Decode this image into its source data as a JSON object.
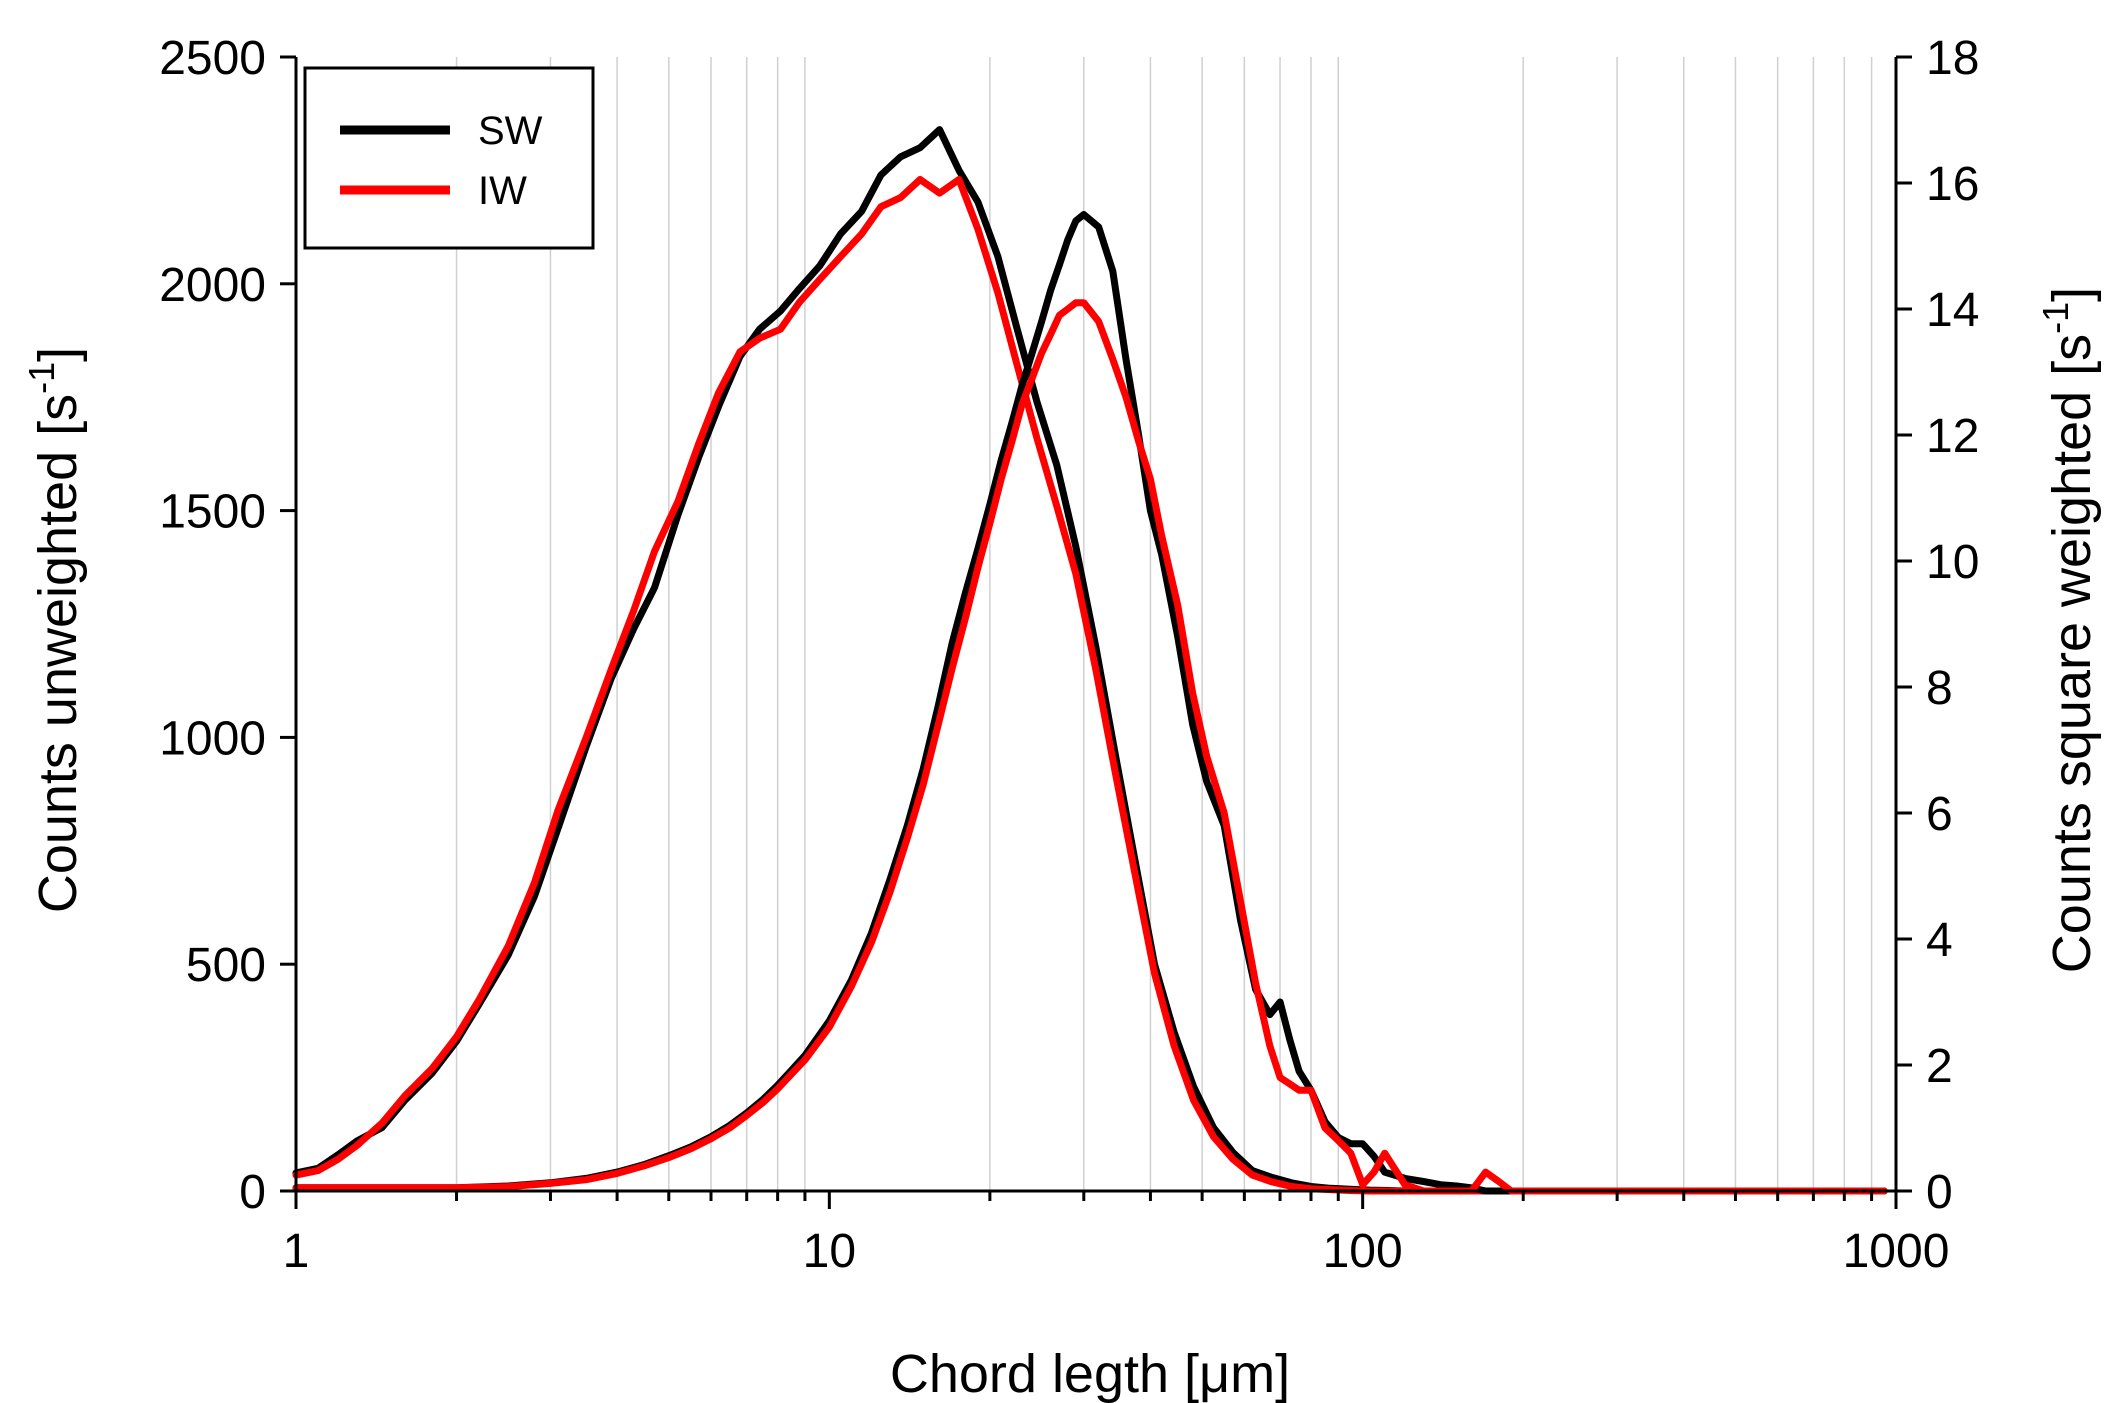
{
  "chart_data": {
    "type": "line",
    "xlabel": "Chord legth [μm]",
    "ylabel_left": "Counts unweighted [s",
    "ylabel_left_sup": "-1",
    "ylabel_left_tail": "]",
    "ylabel_right": "Counts square weighted [s",
    "ylabel_right_sup": "-1",
    "ylabel_right_tail": "]",
    "x_scale": "log",
    "xlim": [
      1,
      1000
    ],
    "x_ticks": [
      "1",
      "10",
      "100",
      "1000"
    ],
    "y_left_lim": [
      0,
      2500
    ],
    "y_left_ticks": [
      "0",
      "500",
      "1000",
      "1500",
      "2000",
      "2500"
    ],
    "y_right_lim": [
      0,
      18
    ],
    "y_right_ticks": [
      "0",
      "2",
      "4",
      "6",
      "8",
      "10",
      "12",
      "14",
      "16",
      "18"
    ],
    "grid": "vertical minor lines",
    "legend_position": "top-left",
    "legend": [
      {
        "name": "SW",
        "color": "#000000"
      },
      {
        "name": "IW",
        "color": "#ff0000"
      }
    ],
    "series": [
      {
        "name": "SW",
        "axis": "left",
        "color": "#000000",
        "x": [
          1,
          1.1,
          1.2,
          1.3,
          1.45,
          1.6,
          1.8,
          2,
          2.2,
          2.5,
          2.8,
          3.1,
          3.5,
          3.9,
          4.3,
          4.7,
          5.2,
          5.7,
          6.2,
          6.8,
          7.4,
          8.1,
          8.8,
          9.6,
          10.5,
          11.5,
          12.5,
          13.6,
          14.8,
          16.1,
          17.5,
          19,
          20.7,
          22.5,
          24.5,
          26.7,
          29,
          31.6,
          34.4,
          37.4,
          40.7,
          44.3,
          48.2,
          52.5,
          57.1,
          62.1,
          67.6,
          73.5,
          80,
          87,
          94.7,
          103,
          112,
          122,
          133,
          145,
          158,
          172,
          187,
          300,
          500,
          700,
          950
        ],
        "y": [
          40,
          50,
          80,
          110,
          140,
          200,
          260,
          330,
          410,
          520,
          650,
          800,
          980,
          1130,
          1240,
          1330,
          1490,
          1620,
          1730,
          1840,
          1900,
          1940,
          1990,
          2040,
          2110,
          2160,
          2240,
          2280,
          2300,
          2340,
          2250,
          2180,
          2060,
          1900,
          1740,
          1600,
          1420,
          1200,
          960,
          730,
          500,
          350,
          230,
          140,
          85,
          45,
          30,
          18,
          10,
          6,
          4,
          2,
          1,
          0,
          0,
          0,
          0,
          0,
          0,
          0,
          0,
          0,
          0
        ]
      },
      {
        "name": "IW",
        "axis": "left",
        "color": "#ff0000",
        "x": [
          1,
          1.1,
          1.2,
          1.3,
          1.45,
          1.6,
          1.8,
          2,
          2.2,
          2.5,
          2.8,
          3.1,
          3.5,
          3.9,
          4.3,
          4.7,
          5.2,
          5.7,
          6.2,
          6.8,
          7.4,
          8.1,
          8.8,
          9.6,
          10.5,
          11.5,
          12.5,
          13.6,
          14.8,
          16.1,
          17.5,
          19,
          20.7,
          22.5,
          24.5,
          26.7,
          29,
          31.6,
          34.4,
          37.4,
          40.7,
          44.3,
          48.2,
          52.5,
          57.1,
          62.1,
          67.6,
          73.5,
          80,
          87,
          94.7,
          103,
          112,
          122,
          133,
          145,
          158,
          172,
          187,
          300,
          500,
          700,
          950
        ],
        "y": [
          35,
          45,
          70,
          100,
          150,
          210,
          270,
          340,
          420,
          540,
          680,
          840,
          1000,
          1150,
          1280,
          1410,
          1520,
          1650,
          1760,
          1850,
          1880,
          1900,
          1960,
          2010,
          2060,
          2110,
          2170,
          2190,
          2230,
          2200,
          2230,
          2120,
          1980,
          1820,
          1660,
          1510,
          1360,
          1150,
          920,
          700,
          480,
          320,
          200,
          120,
          70,
          35,
          20,
          10,
          5,
          3,
          1,
          0,
          0,
          0,
          0,
          0,
          0,
          0,
          0,
          0,
          0,
          0,
          0
        ]
      },
      {
        "name": "SW",
        "axis": "right",
        "color": "#000000",
        "x": [
          1,
          1.5,
          2,
          2.5,
          3,
          3.5,
          4,
          4.5,
          5,
          5.5,
          6,
          6.5,
          7,
          7.5,
          8,
          8.5,
          9,
          10,
          11,
          12,
          13,
          14,
          15,
          16,
          17,
          18,
          19,
          20,
          21,
          22,
          23,
          24,
          25,
          26,
          27,
          28,
          29,
          30,
          32,
          34,
          36,
          38,
          40,
          42,
          45,
          48,
          51,
          55,
          59,
          63,
          67,
          70,
          73,
          76,
          80,
          85,
          90,
          95,
          100,
          105,
          110,
          120,
          130,
          140,
          150,
          160,
          170,
          180,
          190,
          200,
          300,
          500,
          700,
          950
        ],
        "y": [
          0.05,
          0.05,
          0.05,
          0.08,
          0.13,
          0.2,
          0.3,
          0.42,
          0.56,
          0.7,
          0.86,
          1.04,
          1.24,
          1.45,
          1.68,
          1.92,
          2.15,
          2.7,
          3.35,
          4.1,
          4.95,
          5.8,
          6.7,
          7.7,
          8.7,
          9.5,
          10.2,
          10.9,
          11.6,
          12.2,
          12.8,
          13.3,
          13.8,
          14.3,
          14.7,
          15.1,
          15.4,
          15.5,
          15.3,
          14.6,
          13.2,
          12.0,
          10.8,
          10.1,
          8.8,
          7.4,
          6.5,
          5.8,
          4.3,
          3.2,
          2.8,
          3.0,
          2.4,
          1.9,
          1.6,
          1.1,
          0.85,
          0.75,
          0.75,
          0.55,
          0.3,
          0.2,
          0.15,
          0.1,
          0.08,
          0.05,
          0,
          0,
          0,
          0,
          0,
          0,
          0,
          0
        ]
      },
      {
        "name": "IW",
        "axis": "right",
        "color": "#ff0000",
        "x": [
          1,
          1.5,
          2,
          2.5,
          3,
          3.5,
          4,
          4.5,
          5,
          5.5,
          6,
          6.5,
          7,
          7.5,
          8,
          8.5,
          9,
          10,
          11,
          12,
          13,
          14,
          15,
          16,
          17,
          18,
          19,
          20,
          21,
          22,
          23,
          24,
          25,
          26,
          27,
          28,
          29,
          30,
          32,
          34,
          36,
          38,
          40,
          42,
          45,
          48,
          51,
          55,
          59,
          63,
          67,
          70,
          73,
          76,
          80,
          85,
          90,
          95,
          100,
          105,
          110,
          120,
          130,
          140,
          150,
          160,
          170,
          180,
          190,
          200,
          300,
          500,
          700,
          950
        ],
        "y": [
          0.05,
          0.05,
          0.05,
          0.07,
          0.12,
          0.18,
          0.28,
          0.4,
          0.53,
          0.67,
          0.83,
          1.0,
          1.2,
          1.4,
          1.62,
          1.86,
          2.08,
          2.6,
          3.25,
          3.95,
          4.75,
          5.6,
          6.45,
          7.4,
          8.3,
          9.1,
          9.9,
          10.6,
          11.3,
          11.9,
          12.5,
          12.9,
          13.3,
          13.6,
          13.9,
          14.0,
          14.1,
          14.1,
          13.8,
          13.2,
          12.6,
          11.9,
          11.3,
          10.4,
          9.3,
          7.9,
          6.9,
          6.0,
          4.6,
          3.3,
          2.3,
          1.8,
          1.7,
          1.6,
          1.6,
          1.0,
          0.8,
          0.6,
          0.1,
          0.3,
          0.6,
          0.1,
          0,
          0,
          0,
          0,
          0.3,
          0.15,
          0,
          0,
          0,
          0,
          0,
          0
        ]
      }
    ]
  }
}
